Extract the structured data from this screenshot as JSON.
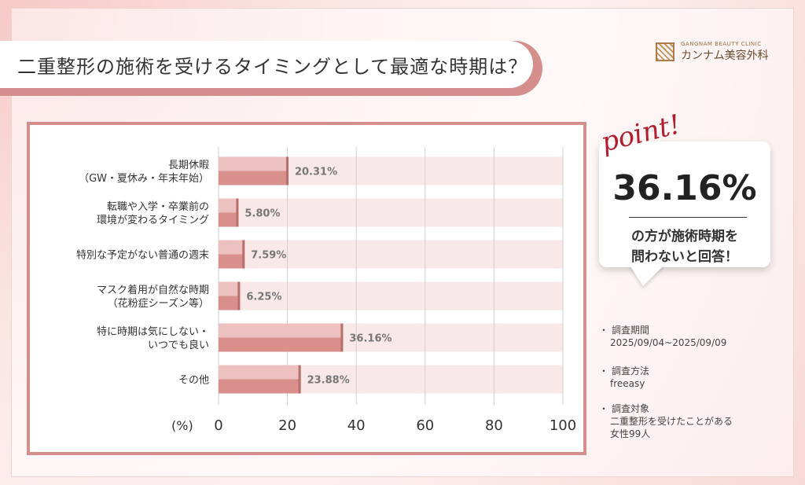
{
  "title": "二重整形の施術を受けるタイミングとして最適な時期は？",
  "logo": {
    "en": "GANGNAM BEAUTY CLINIC",
    "jp": "カンナム美容外科"
  },
  "point": {
    "label": "point!",
    "value": "36.16%",
    "line1": "の方が施術時期を",
    "line2": "問わないと回答！"
  },
  "survey": {
    "period_label": "調査期間",
    "period_value": "2025/09/04~2025/09/09",
    "method_label": "調査方法",
    "method_value": "freeasy",
    "target_label": "調査対象",
    "target_line1": "二重整形を受けたことがある",
    "target_line2": "女性99人",
    "bullet": "・"
  },
  "chart_data": {
    "type": "bar",
    "orientation": "horizontal",
    "categories": [
      [
        "長期休暇",
        "（GW・夏休み・年末年始）"
      ],
      [
        "転職や入学・卒業前の",
        "環境が変わるタイミング"
      ],
      [
        "特別な予定がない普通の週末"
      ],
      [
        "マスク着用が自然な時期",
        "（花粉症シーズン等）"
      ],
      [
        "特に時期は気にしない・",
        "いつでも良い"
      ],
      [
        "その他"
      ]
    ],
    "values": [
      20.31,
      5.8,
      7.59,
      6.25,
      36.16,
      23.88
    ],
    "value_labels": [
      "20.31%",
      "5.80%",
      "7.59%",
      "6.25%",
      "36.16%",
      "23.88%"
    ],
    "xlim": [
      0,
      100
    ],
    "xticks": [
      0,
      20,
      40,
      60,
      80,
      100
    ],
    "unit_label": "(%)",
    "grid": true,
    "colors": {
      "bar": "#d98f8c",
      "bar_light": "#ecc1bf",
      "track": "#f8e9e8",
      "frame": "#d48e8c"
    }
  }
}
